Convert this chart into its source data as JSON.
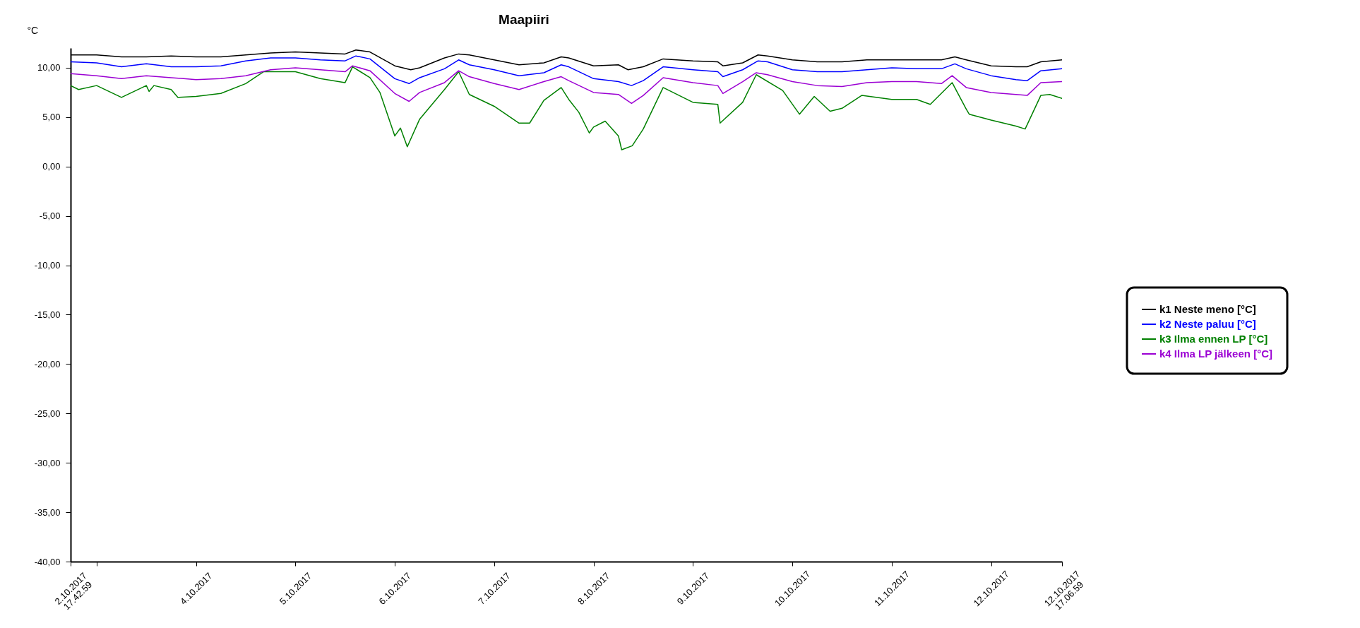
{
  "chart_data": {
    "type": "line",
    "title": "Maapiiri",
    "ylabel": "°C",
    "xlim": [
      "2017-10-02T17:43",
      "2017-10-12T17:07"
    ],
    "ylim": [
      -40,
      12
    ],
    "yticks": [
      {
        "value": -40,
        "label": "-40,00"
      },
      {
        "value": -35,
        "label": "-35,00"
      },
      {
        "value": -30,
        "label": "-30,00"
      },
      {
        "value": -25,
        "label": "-25,00"
      },
      {
        "value": -20,
        "label": "-20,00"
      },
      {
        "value": -15,
        "label": "-15,00"
      },
      {
        "value": -10,
        "label": "-10,00"
      },
      {
        "value": -5,
        "label": "-5,00"
      },
      {
        "value": 0,
        "label": "0,00"
      },
      {
        "value": 5,
        "label": "5,00"
      },
      {
        "value": 10,
        "label": "10,00"
      }
    ],
    "xticks": [
      {
        "value": "2017-10-02T17:43",
        "label": "2.10.2017\n17.42.59"
      },
      {
        "value": "2017-10-03",
        "label": null
      },
      {
        "value": "2017-10-04",
        "label": "4.10.2017"
      },
      {
        "value": "2017-10-05",
        "label": "5.10.2017"
      },
      {
        "value": "2017-10-06",
        "label": "6.10.2017"
      },
      {
        "value": "2017-10-07",
        "label": "7.10.2017"
      },
      {
        "value": "2017-10-08",
        "label": "8.10.2017"
      },
      {
        "value": "2017-10-09",
        "label": "9.10.2017"
      },
      {
        "value": "2017-10-10",
        "label": "10.10.2017"
      },
      {
        "value": "2017-10-11",
        "label": "11.10.2017"
      },
      {
        "value": "2017-10-12",
        "label": "12.10.2017"
      },
      {
        "value": "2017-10-12T17:07",
        "label": "12.10.2017\n17.06.59"
      }
    ],
    "grid": false,
    "legend": "right",
    "series": [
      {
        "name": "k1 Neste meno [°C]",
        "color": "#000000",
        "x": [
          "2017-10-02T17:43",
          "2017-10-03T00:00",
          "2017-10-03T06:00",
          "2017-10-03T12:00",
          "2017-10-03T18:00",
          "2017-10-04T00:00",
          "2017-10-04T06:00",
          "2017-10-04T12:00",
          "2017-10-04T18:00",
          "2017-10-05T00:00",
          "2017-10-05T06:00",
          "2017-10-05T12:00",
          "2017-10-05T14:37",
          "2017-10-05T18:00",
          "2017-10-06T00:00",
          "2017-10-06T03:51",
          "2017-10-06T06:00",
          "2017-10-06T12:00",
          "2017-10-06T15:25",
          "2017-10-06T18:00",
          "2017-10-07T00:00",
          "2017-10-07T06:00",
          "2017-10-07T12:00",
          "2017-10-07T16:11",
          "2017-10-07T18:00",
          "2017-10-08T00:00",
          "2017-10-08T06:00",
          "2017-10-08T08:20",
          "2017-10-08T12:00",
          "2017-10-08T16:48",
          "2017-10-09T00:00",
          "2017-10-09T06:00",
          "2017-10-09T07:14",
          "2017-10-09T12:00",
          "2017-10-09T15:43",
          "2017-10-09T18:00",
          "2017-10-10T00:00",
          "2017-10-10T06:00",
          "2017-10-10T12:00",
          "2017-10-10T18:00",
          "2017-10-11T00:00",
          "2017-10-11T06:00",
          "2017-10-11T12:00",
          "2017-10-11T15:15",
          "2017-10-11T18:00",
          "2017-10-12T00:00",
          "2017-10-12T06:00",
          "2017-10-12T08:43",
          "2017-10-12T12:00",
          "2017-10-12T17:07"
        ],
        "values": [
          11.3,
          11.3,
          11.1,
          11.1,
          11.2,
          11.1,
          11.1,
          11.3,
          11.5,
          11.6,
          11.5,
          11.4,
          11.8,
          11.6,
          10.2,
          9.8,
          10.0,
          11.0,
          11.4,
          11.3,
          10.8,
          10.3,
          10.5,
          11.1,
          11.0,
          10.2,
          10.3,
          9.8,
          10.1,
          10.9,
          10.7,
          10.6,
          10.2,
          10.5,
          11.3,
          11.2,
          10.8,
          10.6,
          10.6,
          10.8,
          10.8,
          10.8,
          10.8,
          11.1,
          10.8,
          10.2,
          10.1,
          10.1,
          10.6,
          10.8
        ]
      },
      {
        "name": "k2 Neste paluu [°C]",
        "color": "#0000ff",
        "x": [
          "2017-10-02T17:43",
          "2017-10-03T00:00",
          "2017-10-03T06:00",
          "2017-10-03T12:00",
          "2017-10-03T18:00",
          "2017-10-04T00:00",
          "2017-10-04T06:00",
          "2017-10-04T12:00",
          "2017-10-04T18:00",
          "2017-10-05T00:00",
          "2017-10-05T06:00",
          "2017-10-05T12:00",
          "2017-10-05T14:37",
          "2017-10-05T18:00",
          "2017-10-06T00:00",
          "2017-10-06T03:27",
          "2017-10-06T06:00",
          "2017-10-06T12:00",
          "2017-10-06T15:25",
          "2017-10-06T18:00",
          "2017-10-07T00:00",
          "2017-10-07T06:00",
          "2017-10-07T12:00",
          "2017-10-07T16:11",
          "2017-10-07T18:00",
          "2017-10-08T00:00",
          "2017-10-08T06:00",
          "2017-10-08T09:10",
          "2017-10-08T12:00",
          "2017-10-08T16:48",
          "2017-10-09T00:00",
          "2017-10-09T06:00",
          "2017-10-09T07:14",
          "2017-10-09T12:00",
          "2017-10-09T15:43",
          "2017-10-09T18:00",
          "2017-10-10T00:00",
          "2017-10-10T06:00",
          "2017-10-10T12:00",
          "2017-10-10T18:00",
          "2017-10-11T00:00",
          "2017-10-11T06:00",
          "2017-10-11T12:00",
          "2017-10-11T15:15",
          "2017-10-11T18:00",
          "2017-10-12T00:00",
          "2017-10-12T06:00",
          "2017-10-12T08:43",
          "2017-10-12T12:00",
          "2017-10-12T17:07"
        ],
        "values": [
          10.6,
          10.5,
          10.1,
          10.4,
          10.1,
          10.1,
          10.2,
          10.7,
          11.0,
          11.0,
          10.8,
          10.7,
          11.2,
          10.9,
          8.9,
          8.4,
          9.0,
          9.9,
          10.8,
          10.3,
          9.8,
          9.2,
          9.5,
          10.3,
          10.1,
          8.9,
          8.6,
          8.2,
          8.7,
          10.1,
          9.8,
          9.6,
          9.1,
          9.8,
          10.7,
          10.6,
          9.8,
          9.6,
          9.6,
          9.8,
          10.0,
          9.9,
          9.9,
          10.4,
          9.9,
          9.2,
          8.8,
          8.7,
          9.7,
          9.9
        ]
      },
      {
        "name": "k3 Ilma ennen LP [°C]",
        "color": "#008000",
        "x": [
          "2017-10-02T17:43",
          "2017-10-02T19:39",
          "2017-10-03T00:00",
          "2017-10-03T06:00",
          "2017-10-03T12:00",
          "2017-10-03T12:40",
          "2017-10-03T13:50",
          "2017-10-03T18:00",
          "2017-10-03T19:38",
          "2017-10-04T00:00",
          "2017-10-04T06:00",
          "2017-10-04T12:00",
          "2017-10-04T16:18",
          "2017-10-05T00:00",
          "2017-10-05T06:00",
          "2017-10-05T12:00",
          "2017-10-05T13:48",
          "2017-10-05T18:00",
          "2017-10-05T20:25",
          "2017-10-06T00:00",
          "2017-10-06T01:22",
          "2017-10-06T03:01",
          "2017-10-06T06:00",
          "2017-10-06T12:00",
          "2017-10-06T15:25",
          "2017-10-06T18:00",
          "2017-10-07T00:00",
          "2017-10-07T06:00",
          "2017-10-07T08:34",
          "2017-10-07T12:00",
          "2017-10-07T16:11",
          "2017-10-07T18:00",
          "2017-10-07T20:26",
          "2017-10-07T22:58",
          "2017-10-08T00:00",
          "2017-10-08T02:48",
          "2017-10-08T06:00",
          "2017-10-08T06:47",
          "2017-10-08T09:20",
          "2017-10-08T12:00",
          "2017-10-08T16:48",
          "2017-10-09T00:00",
          "2017-10-09T06:00",
          "2017-10-09T06:33",
          "2017-10-09T12:00",
          "2017-10-09T15:17",
          "2017-10-09T21:40",
          "2017-10-10T01:43",
          "2017-10-10T05:17",
          "2017-10-10T09:07",
          "2017-10-10T12:00",
          "2017-10-10T16:45",
          "2017-10-11T00:00",
          "2017-10-11T06:00",
          "2017-10-11T09:18",
          "2017-10-11T14:35",
          "2017-10-11T18:00",
          "2017-10-11T18:43",
          "2017-10-12T00:00",
          "2017-10-12T06:00",
          "2017-10-12T08:13",
          "2017-10-12T12:00",
          "2017-10-12T14:10",
          "2017-10-12T17:07"
        ],
        "values": [
          8.2,
          7.8,
          8.2,
          7.0,
          8.2,
          7.6,
          8.2,
          7.8,
          7.0,
          7.1,
          7.4,
          8.4,
          9.6,
          9.6,
          8.9,
          8.5,
          10.1,
          9.0,
          7.5,
          3.1,
          3.9,
          2.0,
          4.8,
          7.8,
          9.6,
          7.3,
          6.1,
          4.4,
          4.4,
          6.7,
          8.0,
          6.8,
          5.5,
          3.4,
          4.0,
          4.6,
          3.1,
          1.7,
          2.1,
          3.8,
          8.0,
          6.5,
          6.3,
          4.4,
          6.5,
          9.3,
          7.7,
          5.3,
          7.1,
          5.6,
          5.9,
          7.2,
          6.8,
          6.8,
          6.3,
          8.5,
          5.8,
          5.3,
          4.7,
          4.1,
          3.8,
          7.2,
          7.3,
          6.9
        ]
      },
      {
        "name": "k4 Ilma LP jälkeen [°C]",
        "color": "#9b00d3",
        "x": [
          "2017-10-02T17:43",
          "2017-10-03T00:00",
          "2017-10-03T06:00",
          "2017-10-03T12:00",
          "2017-10-03T18:00",
          "2017-10-04T00:00",
          "2017-10-04T06:00",
          "2017-10-04T12:00",
          "2017-10-04T18:00",
          "2017-10-05T00:00",
          "2017-10-05T06:00",
          "2017-10-05T12:00",
          "2017-10-05T13:48",
          "2017-10-05T18:00",
          "2017-10-06T00:00",
          "2017-10-06T03:27",
          "2017-10-06T06:00",
          "2017-10-06T12:00",
          "2017-10-06T15:25",
          "2017-10-06T18:00",
          "2017-10-07T00:00",
          "2017-10-07T06:00",
          "2017-10-07T12:00",
          "2017-10-07T16:11",
          "2017-10-07T18:00",
          "2017-10-08T00:00",
          "2017-10-08T06:00",
          "2017-10-08T09:10",
          "2017-10-08T12:00",
          "2017-10-08T16:48",
          "2017-10-09T00:00",
          "2017-10-09T06:00",
          "2017-10-09T07:14",
          "2017-10-09T12:00",
          "2017-10-09T15:17",
          "2017-10-09T18:00",
          "2017-10-10T00:00",
          "2017-10-10T06:00",
          "2017-10-10T12:00",
          "2017-10-10T18:00",
          "2017-10-11T00:00",
          "2017-10-11T06:00",
          "2017-10-11T12:00",
          "2017-10-11T14:35",
          "2017-10-11T18:00",
          "2017-10-12T00:00",
          "2017-10-12T06:00",
          "2017-10-12T08:43",
          "2017-10-12T12:00",
          "2017-10-12T17:07"
        ],
        "values": [
          9.4,
          9.2,
          8.9,
          9.2,
          9.0,
          8.8,
          8.9,
          9.2,
          9.8,
          10.0,
          9.8,
          9.6,
          10.2,
          9.7,
          7.4,
          6.6,
          7.5,
          8.5,
          9.7,
          9.1,
          8.4,
          7.8,
          8.6,
          9.1,
          8.7,
          7.5,
          7.3,
          6.4,
          7.2,
          9.0,
          8.5,
          8.2,
          7.4,
          8.6,
          9.5,
          9.3,
          8.6,
          8.2,
          8.1,
          8.5,
          8.6,
          8.6,
          8.4,
          9.2,
          8.0,
          7.5,
          7.3,
          7.2,
          8.5,
          8.6
        ]
      }
    ]
  }
}
